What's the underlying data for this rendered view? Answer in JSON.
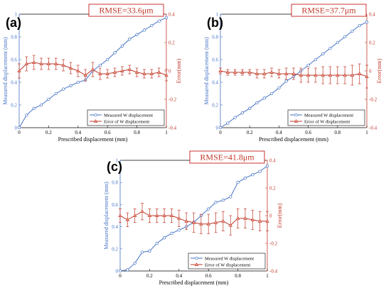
{
  "colors": {
    "measured": "#4472c4",
    "error": "#c0392b",
    "axis": "#000000",
    "rmse_box": "#c00000"
  },
  "chart_data": [
    {
      "id": "a",
      "type": "line",
      "panel_label": "(a)",
      "rmse": "RMSE=33.6μm",
      "xlabel": "Prescribed displacement (mm)",
      "ylabel_left": "Measured displacement (mm)",
      "ylabel_right": "Error(mm)",
      "xlim": [
        0,
        1
      ],
      "ylim_left": [
        0,
        1
      ],
      "ylim_right": [
        -0.4,
        0.4
      ],
      "x_ticks": [
        "0",
        "0.2",
        "0.4",
        "0.6",
        "0.8",
        "1"
      ],
      "y_left_ticks": [
        "0",
        "0.2",
        "0.4",
        "0.6",
        "0.8",
        "1"
      ],
      "y_right_ticks": [
        "-0.4",
        "-0.2",
        "0",
        "0.2",
        "0.4"
      ],
      "legend": [
        "Measured W displacement",
        "Error of W displacement"
      ],
      "x": [
        0,
        0.05,
        0.1,
        0.15,
        0.2,
        0.25,
        0.3,
        0.35,
        0.4,
        0.45,
        0.5,
        0.55,
        0.6,
        0.65,
        0.7,
        0.75,
        0.8,
        0.85,
        0.9,
        0.95,
        1.0
      ],
      "series": [
        {
          "name": "Measured W displacement",
          "values": [
            0.0,
            0.11,
            0.17,
            0.2,
            0.25,
            0.3,
            0.34,
            0.37,
            0.4,
            0.42,
            0.5,
            0.55,
            0.6,
            0.66,
            0.72,
            0.78,
            0.82,
            0.86,
            0.9,
            0.94,
            0.97
          ]
        },
        {
          "name": "Error of W displacement",
          "values": [
            0.0,
            0.05,
            0.06,
            0.05,
            0.05,
            0.05,
            0.04,
            0.02,
            0.0,
            -0.03,
            0.01,
            -0.02,
            -0.02,
            -0.01,
            0.0,
            0.01,
            -0.01,
            -0.02,
            -0.02,
            -0.01,
            -0.03
          ],
          "error": [
            0.05,
            0.05,
            0.05,
            0.04,
            0.04,
            0.04,
            0.04,
            0.04,
            0.04,
            0.04,
            0.05,
            0.04,
            0.03,
            0.03,
            0.03,
            0.03,
            0.03,
            0.03,
            0.03,
            0.03,
            0.04
          ]
        }
      ]
    },
    {
      "id": "b",
      "type": "line",
      "panel_label": "(b)",
      "rmse": "RMSE=37.7μm",
      "xlabel": "Prescribed displacement (mm)",
      "ylabel_left": "Measured displacement (mm)",
      "ylabel_right": "Error(mm)",
      "xlim": [
        0,
        1
      ],
      "ylim_left": [
        0,
        1
      ],
      "ylim_right": [
        -0.4,
        0.4
      ],
      "x_ticks": [
        "0",
        "0.2",
        "0.4",
        "0.6",
        "0.8",
        "1"
      ],
      "y_left_ticks": [
        "0",
        "0.2",
        "0.4",
        "0.6",
        "0.8",
        "1"
      ],
      "y_right_ticks": [
        "-0.4",
        "-0.2",
        "0",
        "0.2",
        "0.4"
      ],
      "legend": [
        "Measured W displacement",
        "Error of W displacement"
      ],
      "x": [
        0,
        0.05,
        0.1,
        0.15,
        0.2,
        0.25,
        0.3,
        0.35,
        0.4,
        0.45,
        0.5,
        0.55,
        0.6,
        0.65,
        0.7,
        0.75,
        0.8,
        0.85,
        0.9,
        0.95,
        1.0
      ],
      "series": [
        {
          "name": "Measured W displacement",
          "values": [
            0.0,
            0.04,
            0.09,
            0.13,
            0.17,
            0.22,
            0.26,
            0.3,
            0.35,
            0.41,
            0.45,
            0.5,
            0.55,
            0.6,
            0.65,
            0.7,
            0.75,
            0.8,
            0.85,
            0.9,
            0.93
          ]
        },
        {
          "name": "Error of W displacement",
          "values": [
            0.0,
            -0.01,
            -0.01,
            -0.01,
            -0.01,
            -0.02,
            -0.02,
            -0.01,
            -0.02,
            -0.02,
            -0.02,
            -0.03,
            -0.03,
            -0.03,
            -0.03,
            -0.03,
            -0.03,
            -0.03,
            -0.03,
            -0.02,
            -0.04
          ],
          "error": [
            0.02,
            0.02,
            0.02,
            0.02,
            0.02,
            0.03,
            0.03,
            0.03,
            0.03,
            0.04,
            0.04,
            0.05,
            0.05,
            0.05,
            0.06,
            0.06,
            0.06,
            0.06,
            0.07,
            0.07,
            0.08
          ]
        }
      ]
    },
    {
      "id": "c",
      "type": "line",
      "panel_label": "(c)",
      "rmse": "RMSE=41.8μm",
      "xlabel": "Prescribed displacement (mm)",
      "ylabel_left": "Measured displacement (mm)",
      "ylabel_right": "Error(mm)",
      "xlim": [
        0,
        1
      ],
      "ylim_left": [
        0,
        1
      ],
      "ylim_right": [
        -0.4,
        0.4
      ],
      "x_ticks": [
        "0",
        "0.2",
        "0.4",
        "0.6",
        "0.8",
        "1"
      ],
      "y_left_ticks": [
        "0",
        "0.2",
        "0.4",
        "0.6",
        "0.8",
        "1"
      ],
      "y_right_ticks": [
        "-0.4",
        "-0.2",
        "0",
        "0.2",
        "0.4"
      ],
      "legend": [
        "Measured W displacement",
        "Error of W displacement"
      ],
      "x": [
        0,
        0.05,
        0.1,
        0.15,
        0.2,
        0.25,
        0.3,
        0.35,
        0.4,
        0.45,
        0.5,
        0.55,
        0.6,
        0.65,
        0.7,
        0.75,
        0.8,
        0.85,
        0.9,
        0.95,
        1.0
      ],
      "series": [
        {
          "name": "Measured W displacement",
          "values": [
            0.0,
            0.01,
            0.07,
            0.17,
            0.18,
            0.25,
            0.3,
            0.34,
            0.37,
            0.4,
            0.44,
            0.5,
            0.56,
            0.62,
            0.64,
            0.67,
            0.8,
            0.84,
            0.87,
            0.9,
            0.95
          ]
        },
        {
          "name": "Error of W displacement",
          "values": [
            0.0,
            -0.03,
            0.0,
            0.03,
            0.0,
            0.0,
            0.0,
            0.0,
            -0.02,
            -0.04,
            -0.05,
            -0.06,
            -0.06,
            -0.05,
            -0.04,
            -0.07,
            -0.02,
            -0.02,
            -0.03,
            -0.04,
            -0.04
          ],
          "error": [
            0.05,
            0.05,
            0.05,
            0.06,
            0.05,
            0.05,
            0.05,
            0.05,
            0.06,
            0.06,
            0.07,
            0.07,
            0.07,
            0.07,
            0.07,
            0.07,
            0.07,
            0.07,
            0.07,
            0.07,
            0.07
          ]
        }
      ]
    }
  ]
}
